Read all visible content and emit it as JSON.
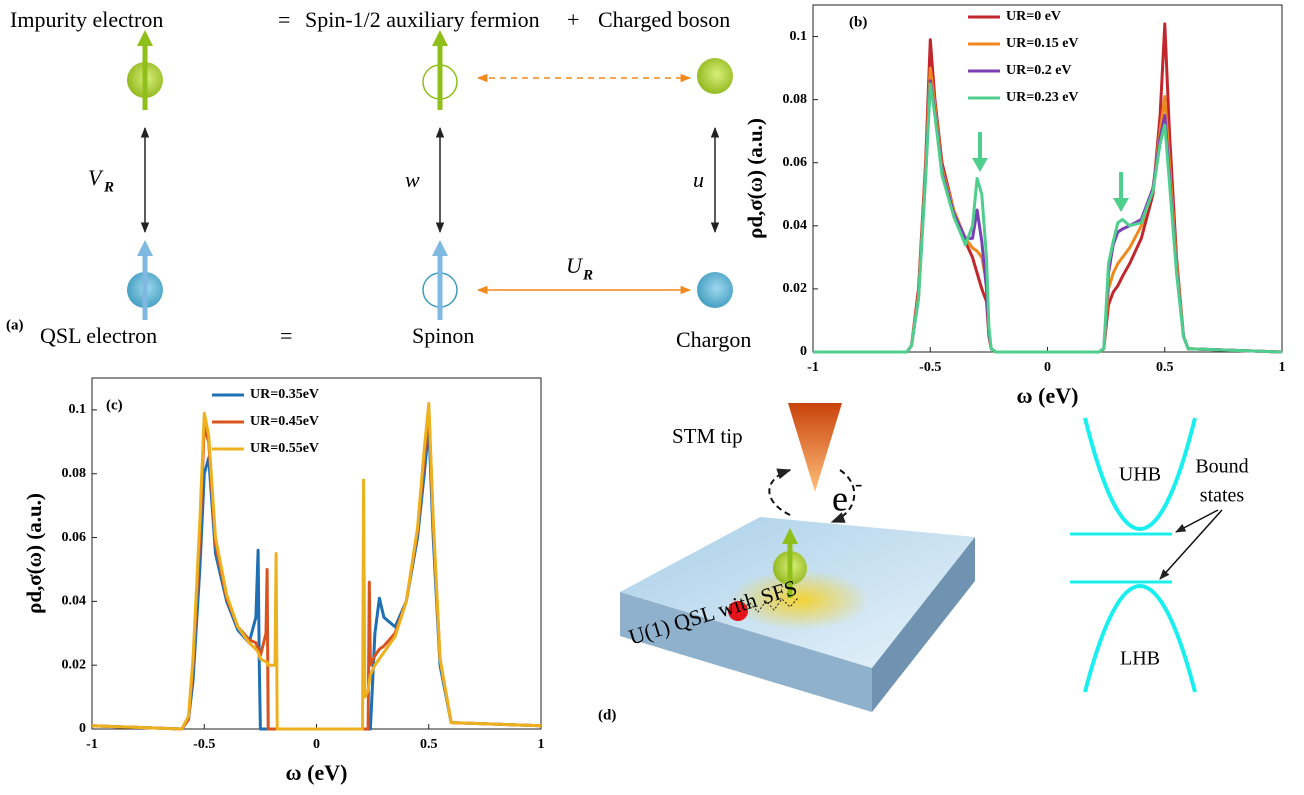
{
  "panel_a": {
    "label": "(a)",
    "top_left": "Impurity electron",
    "top_eq": "=",
    "top_mid": "Spin-1/2 auxiliary fermion",
    "top_plus": "+",
    "top_right": "Charged boson",
    "v_left": "V",
    "v_left_sub": "R",
    "v_mid": "w",
    "v_right": "u",
    "h_bottom": "U",
    "h_bottom_sub": "R",
    "bottom_left": "QSL electron",
    "bottom_eq": "=",
    "bottom_mid": "Spinon",
    "bottom_right": "Chargon"
  },
  "chart_data": [
    {
      "type": "line",
      "label": "(b)",
      "xlabel": "ω (eV)",
      "ylabel": "ρd,σ(ω) (a.u.)",
      "legend": "upper center",
      "xlim": [
        -1,
        1
      ],
      "ylim": [
        0,
        0.11
      ],
      "xticks": [
        -1,
        -0.5,
        0,
        0.5,
        1
      ],
      "yticks": [
        0,
        0.02,
        0.04,
        0.06,
        0.08,
        0.1
      ],
      "x": [
        -1,
        -0.6,
        -0.58,
        -0.55,
        -0.52,
        -0.5,
        -0.48,
        -0.45,
        -0.4,
        -0.35,
        -0.32,
        -0.3,
        -0.28,
        -0.26,
        -0.25,
        -0.24,
        -0.22,
        0,
        0.22,
        0.24,
        0.25,
        0.26,
        0.28,
        0.3,
        0.32,
        0.35,
        0.4,
        0.45,
        0.48,
        0.5,
        0.52,
        0.55,
        0.58,
        0.6,
        1
      ],
      "series": [
        {
          "name": "UR=0 eV",
          "color": "#c1272d",
          "values": [
            0,
            0,
            0.002,
            0.02,
            0.06,
            0.099,
            0.08,
            0.06,
            0.045,
            0.035,
            0.03,
            0.025,
            0.02,
            0.016,
            0.005,
            0.001,
            0,
            0,
            0,
            0.001,
            0.008,
            0.015,
            0.019,
            0.021,
            0.024,
            0.028,
            0.036,
            0.05,
            0.075,
            0.104,
            0.07,
            0.03,
            0.005,
            0.001,
            0
          ]
        },
        {
          "name": "UR=0.15 eV",
          "color": "#f0891c",
          "values": [
            0,
            0,
            0.002,
            0.018,
            0.058,
            0.09,
            0.078,
            0.058,
            0.045,
            0.036,
            0.033,
            0.032,
            0.03,
            0.022,
            0.006,
            0.001,
            0,
            0,
            0,
            0.001,
            0.01,
            0.02,
            0.025,
            0.028,
            0.03,
            0.033,
            0.04,
            0.052,
            0.07,
            0.081,
            0.06,
            0.028,
            0.005,
            0.001,
            0
          ]
        },
        {
          "name": "UR=0.2 eV",
          "color": "#7b3fb5",
          "values": [
            0,
            0,
            0.002,
            0.017,
            0.056,
            0.086,
            0.076,
            0.057,
            0.044,
            0.036,
            0.036,
            0.045,
            0.035,
            0.02,
            0.006,
            0.001,
            0,
            0,
            0,
            0.001,
            0.012,
            0.025,
            0.034,
            0.038,
            0.039,
            0.04,
            0.042,
            0.052,
            0.068,
            0.075,
            0.056,
            0.026,
            0.005,
            0.001,
            0
          ]
        },
        {
          "name": "UR=0.23 eV",
          "color": "#4fcf8d",
          "values": [
            0,
            0,
            0.002,
            0.017,
            0.055,
            0.085,
            0.075,
            0.056,
            0.043,
            0.034,
            0.04,
            0.055,
            0.05,
            0.03,
            0.008,
            0.001,
            0,
            0,
            0,
            0.001,
            0.014,
            0.028,
            0.035,
            0.041,
            0.042,
            0.04,
            0.041,
            0.051,
            0.066,
            0.072,
            0.054,
            0.025,
            0.005,
            0.001,
            0
          ]
        }
      ]
    },
    {
      "type": "line",
      "label": "(c)",
      "xlabel": "ω (eV)",
      "ylabel": "ρd,σ(ω) (a.u.)",
      "legend": "upper center",
      "xlim": [
        -1,
        1
      ],
      "ylim": [
        0,
        0.11
      ],
      "xticks": [
        -1,
        -0.5,
        0,
        0.5,
        1
      ],
      "yticks": [
        0,
        0.02,
        0.04,
        0.06,
        0.08,
        0.1
      ],
      "x": [
        -1,
        -0.6,
        -0.57,
        -0.55,
        -0.52,
        -0.5,
        -0.48,
        -0.45,
        -0.4,
        -0.35,
        -0.3,
        -0.27,
        -0.26,
        -0.255,
        -0.25,
        -0.225,
        -0.22,
        -0.215,
        -0.185,
        -0.18,
        -0.175,
        0,
        0.205,
        0.21,
        0.215,
        0.23,
        0.235,
        0.24,
        0.26,
        0.28,
        0.3,
        0.35,
        0.4,
        0.45,
        0.48,
        0.5,
        0.52,
        0.55,
        0.6,
        1
      ],
      "series": [
        {
          "name": "UR=0.35eV",
          "color": "#1f6fb4",
          "values": [
            0.001,
            0,
            0.003,
            0.015,
            0.05,
            0.08,
            0.085,
            0.055,
            0.04,
            0.031,
            0.027,
            0.035,
            0.056,
            0.02,
            0,
            0,
            0,
            0,
            0,
            0,
            0,
            0,
            0,
            0,
            0,
            0,
            0,
            0,
            0.03,
            0.041,
            0.035,
            0.032,
            0.04,
            0.06,
            0.08,
            0.095,
            0.06,
            0.02,
            0.002,
            0.001
          ]
        },
        {
          "name": "UR=0.45eV",
          "color": "#d9531e",
          "values": [
            0.001,
            0,
            0.003,
            0.02,
            0.06,
            0.095,
            0.09,
            0.058,
            0.041,
            0.032,
            0.028,
            0.027,
            0.025,
            0.024,
            0.023,
            0.03,
            0.05,
            0,
            0,
            0,
            0,
            0,
            0,
            0,
            0,
            0,
            0.046,
            0.02,
            0.023,
            0.025,
            0.026,
            0.03,
            0.04,
            0.062,
            0.085,
            0.1,
            0.065,
            0.022,
            0.002,
            0.001
          ]
        },
        {
          "name": "UR=0.55eV",
          "color": "#edb120",
          "values": [
            0.001,
            0,
            0.004,
            0.022,
            0.065,
            0.099,
            0.092,
            0.06,
            0.042,
            0.032,
            0.027,
            0.025,
            0.024,
            0.023,
            0.022,
            0.021,
            0.021,
            0.02,
            0.02,
            0.055,
            0,
            0,
            0,
            0.078,
            0.01,
            0.012,
            0.015,
            0.017,
            0.02,
            0.022,
            0.024,
            0.029,
            0.04,
            0.063,
            0.088,
            0.102,
            0.066,
            0.022,
            0.002,
            0.001
          ]
        }
      ]
    }
  ],
  "panel_d": {
    "label": "(d)",
    "tip": "STM tip",
    "electron": "e",
    "electron_sup": "-",
    "slab": "U(1) QSL with SFS",
    "uhb": "UHB",
    "lhb": "LHB",
    "bound_1": "Bound",
    "bound_2": "states"
  }
}
